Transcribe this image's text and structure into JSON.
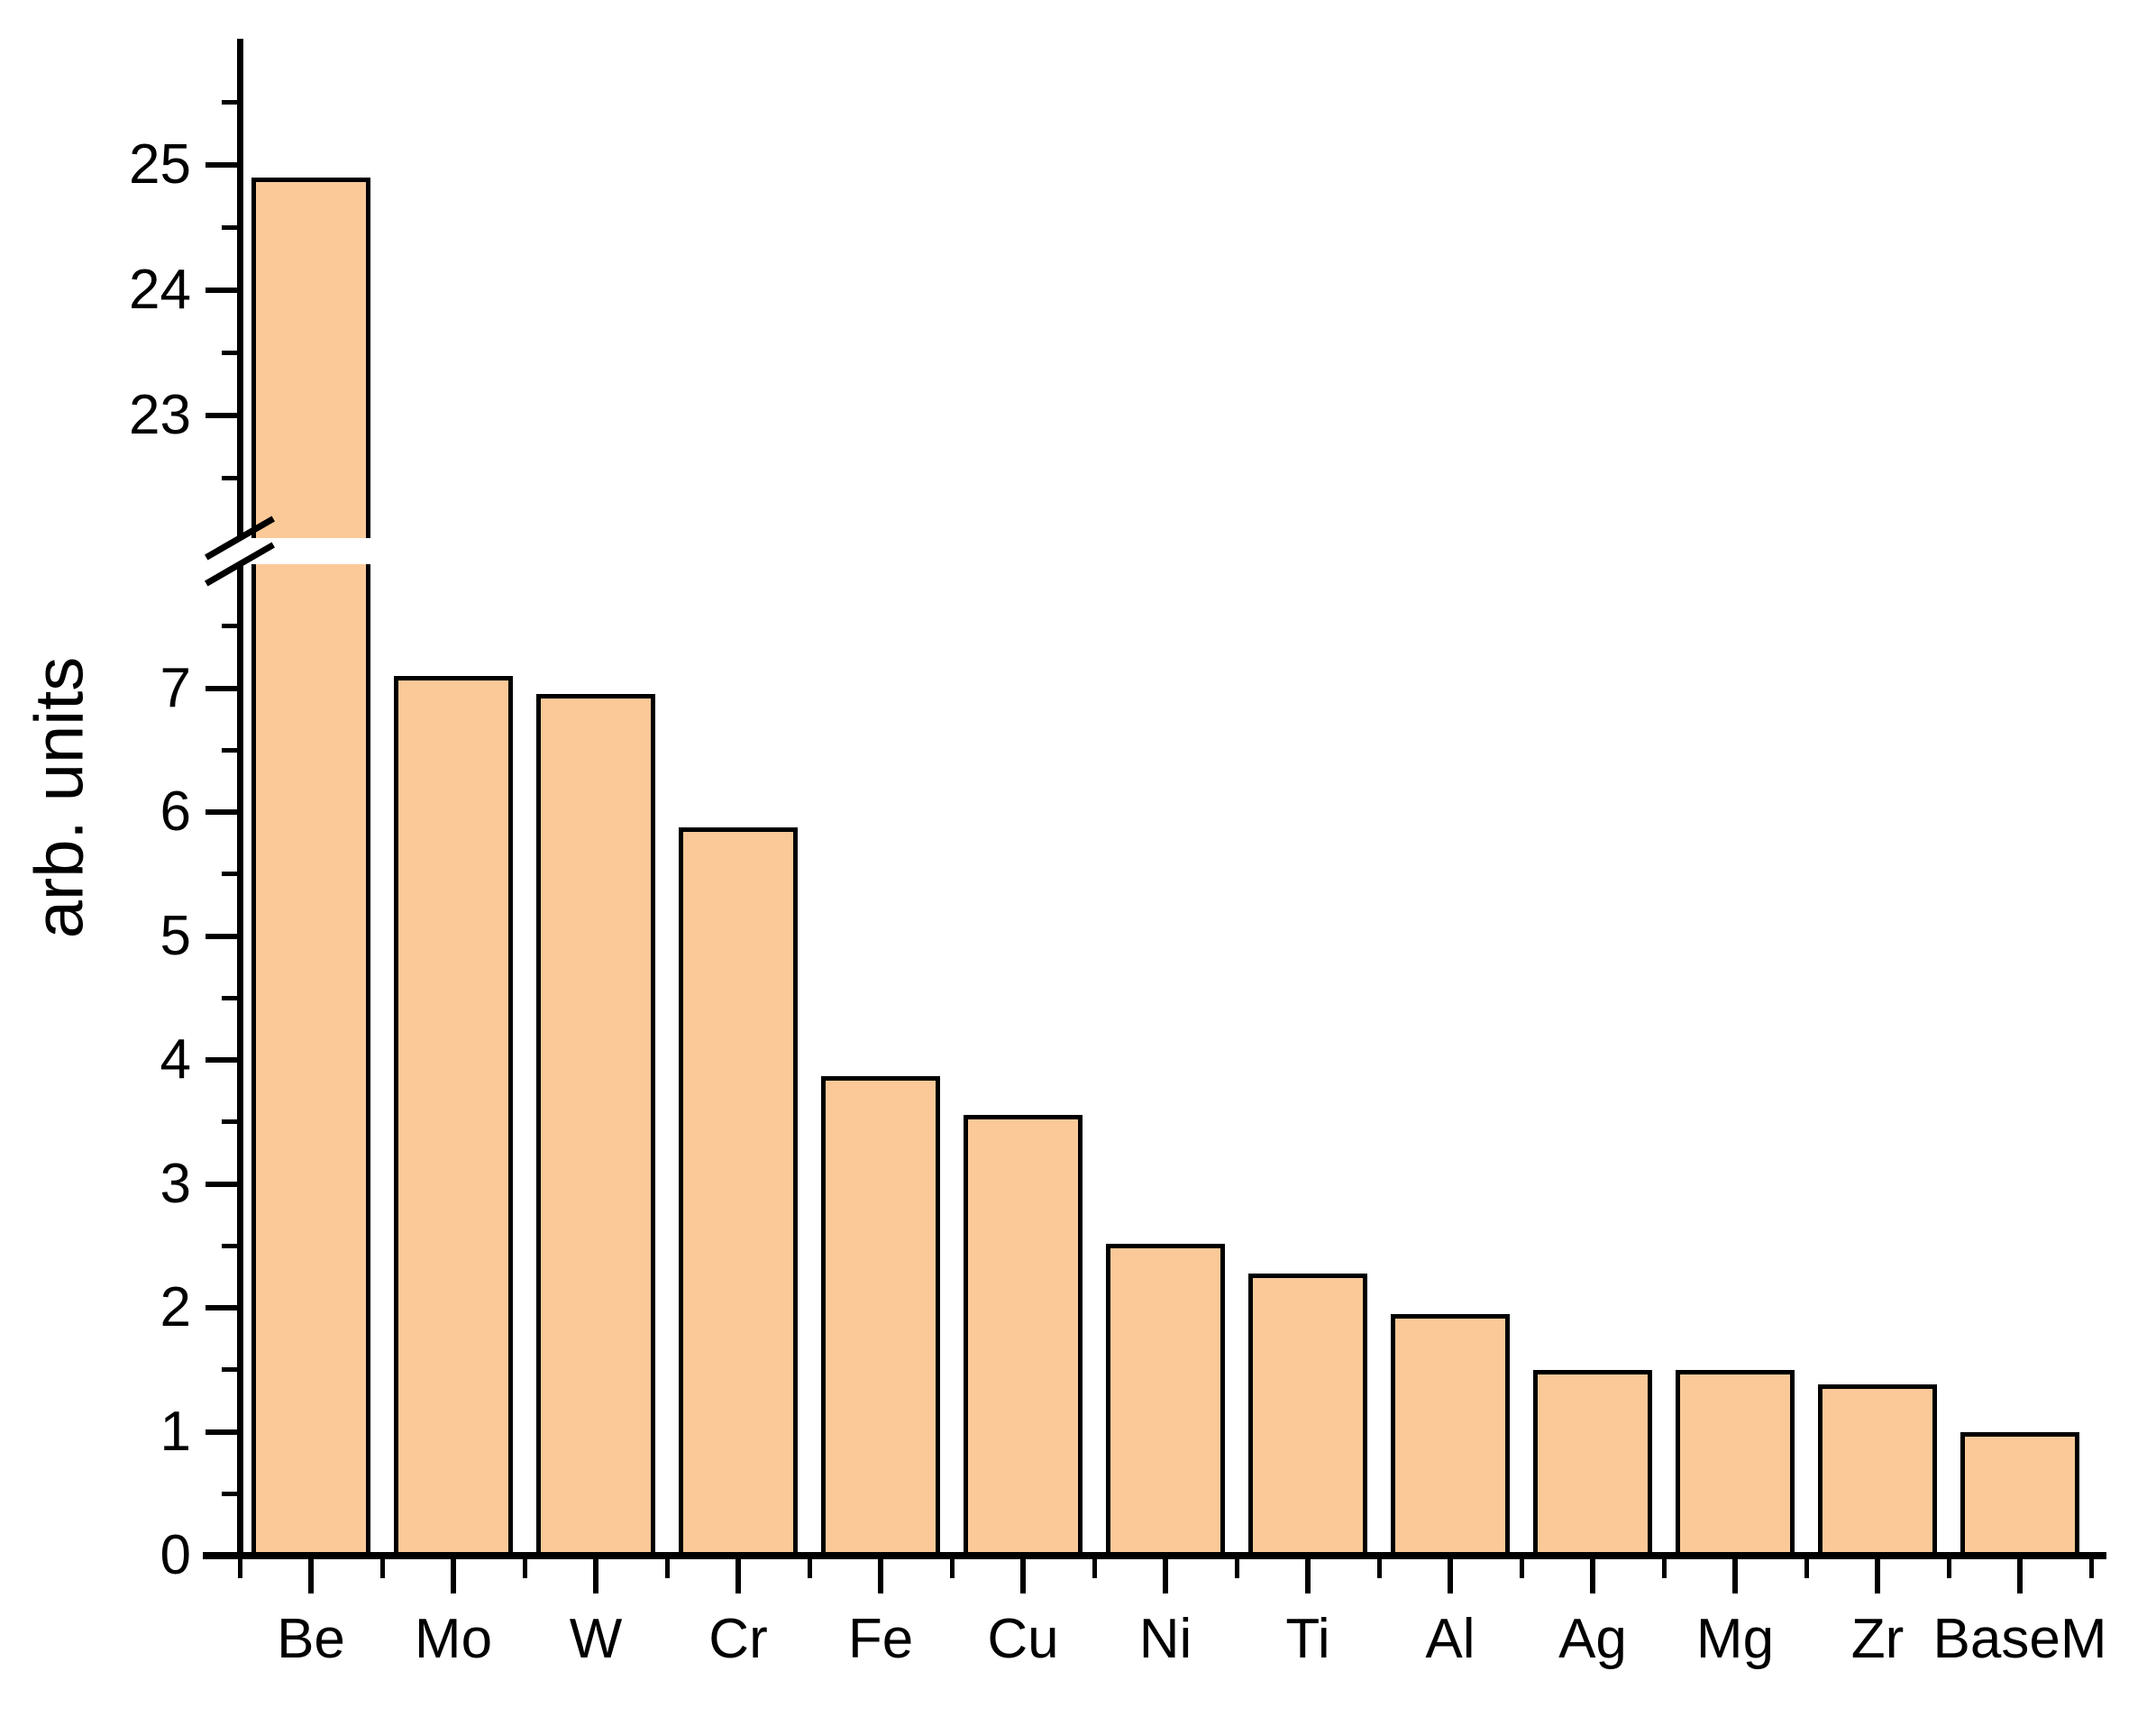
{
  "chart_data": {
    "type": "bar",
    "title": "",
    "xlabel": "",
    "ylabel": "arb. units",
    "categories": [
      "Be",
      "Mo",
      "W",
      "Cr",
      "Fe",
      "Cu",
      "Ni",
      "Ti",
      "Al",
      "Ag",
      "Mg",
      "Zr",
      "BaseM"
    ],
    "values": [
      24.9,
      7.1,
      6.95,
      5.88,
      3.87,
      3.56,
      2.52,
      2.28,
      1.95,
      1.5,
      1.5,
      1.38,
      1.0
    ],
    "series": [
      {
        "name": "arb. units",
        "values": [
          24.9,
          7.1,
          6.95,
          5.88,
          3.87,
          3.56,
          2.52,
          2.28,
          1.95,
          1.5,
          1.5,
          1.38,
          1.0
        ]
      }
    ],
    "y_axis": {
      "broken": true,
      "lower_segment": {
        "min": 0,
        "max": 7.85,
        "major_ticks": [
          0,
          1,
          2,
          3,
          4,
          5,
          6,
          7
        ],
        "minor_step": 0.5
      },
      "upper_segment": {
        "min": 22.0,
        "max": 26.05,
        "major_ticks": [
          23,
          24,
          25
        ],
        "minor_step": 0.5
      },
      "break_between": [
        7.85,
        22.0
      ],
      "tick_labels_lower": [
        "0",
        "1",
        "2",
        "3",
        "4",
        "5",
        "6",
        "7"
      ],
      "tick_labels_upper": [
        "23",
        "24",
        "25"
      ]
    },
    "x_axis": {
      "tick_labels": [
        "Be",
        "Mo",
        "W",
        "Cr",
        "Fe",
        "Cu",
        "Ni",
        "Ti",
        "Al",
        "Ag",
        "Mg",
        "Zr",
        "BaseM"
      ]
    },
    "grid": false,
    "legend": null,
    "colors": {
      "bar_fill": "#FBC998",
      "bar_stroke": "#000000",
      "axis": "#000000",
      "background": "#FFFFFF"
    }
  }
}
